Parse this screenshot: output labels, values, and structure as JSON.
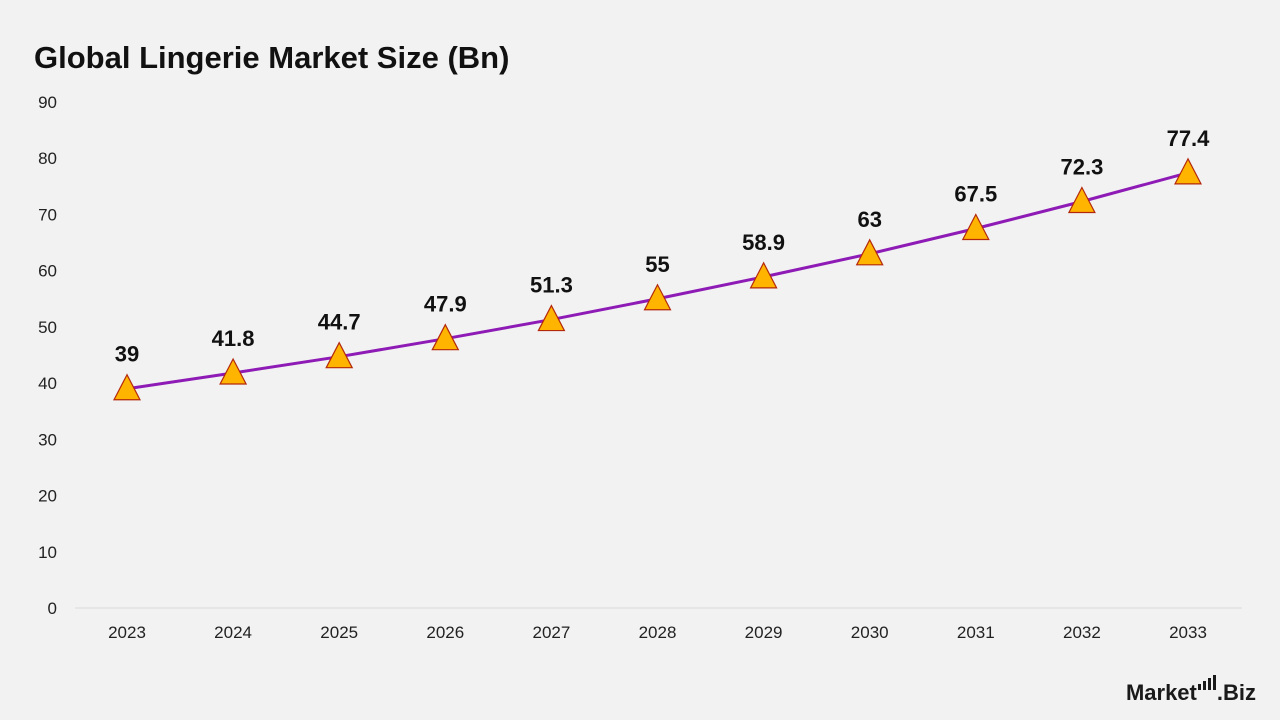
{
  "chart_data": {
    "type": "line",
    "title": "Global Lingerie Market Size (Bn)",
    "xlabel": "",
    "ylabel": "",
    "categories": [
      "2023",
      "2024",
      "2025",
      "2026",
      "2027",
      "2028",
      "2029",
      "2030",
      "2031",
      "2032",
      "2033"
    ],
    "series": [
      {
        "values": [
          39,
          41.8,
          44.7,
          47.9,
          51.3,
          55,
          58.9,
          63,
          67.5,
          72.3,
          77.4
        ]
      }
    ],
    "data_labels": [
      "39",
      "41.8",
      "44.7",
      "47.9",
      "51.3",
      "55",
      "58.9",
      "63",
      "67.5",
      "72.3",
      "77.4"
    ],
    "ylim": [
      0,
      90
    ],
    "yticks": [
      0,
      10,
      20,
      30,
      40,
      50,
      60,
      70,
      80,
      90
    ],
    "grid": false,
    "legend": "none",
    "marker": "triangle",
    "colors": {
      "line": "#8e1bb5",
      "marker_fill": "#ffb400",
      "marker_edge": "#b3280c",
      "background": "#f2f2f2"
    }
  },
  "brand": {
    "name_left": "Market",
    "name_right": ".Biz",
    "icon": "bar-chart-icon"
  }
}
